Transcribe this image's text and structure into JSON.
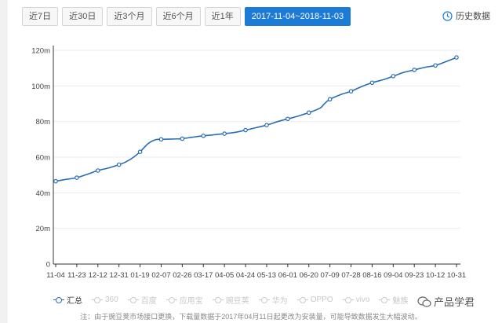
{
  "tabs": [
    "近7日",
    "近30日",
    "近3个月",
    "近6个月",
    "近1年",
    "2017-11-04~2018-11-03"
  ],
  "active_tab": 5,
  "history_label": "历史数据",
  "legend": [
    {
      "label": "汇总",
      "active": true
    },
    {
      "label": "360",
      "active": false
    },
    {
      "label": "百度",
      "active": false
    },
    {
      "label": "应用宝",
      "active": false
    },
    {
      "label": "豌豆荚",
      "active": false
    },
    {
      "label": "华为",
      "active": false
    },
    {
      "label": "OPPO",
      "active": false
    },
    {
      "label": "vivo",
      "active": false
    },
    {
      "label": "魅族",
      "active": false
    }
  ],
  "footnote": "注：由于豌豆荚市场接口更换，下载量数据于2017年04月11日起更改为安装量，可能导致数据发生大幅波动。",
  "watermark": "产品学君",
  "colors": {
    "series": "#2a6db5",
    "tab_active": "#1c7bd6"
  },
  "chart_data": {
    "type": "line",
    "categories": [
      "11-04",
      "11-23",
      "12-12",
      "12-31",
      "01-19",
      "02-07",
      "02-26",
      "03-17",
      "04-05",
      "04-24",
      "05-13",
      "06-01",
      "06-20",
      "07-09",
      "07-28",
      "08-16",
      "09-04",
      "09-23",
      "10-12",
      "10-31"
    ],
    "ylim": [
      0,
      120
    ],
    "yticks": [
      "0",
      "20m",
      "40m",
      "60m",
      "80m",
      "100m",
      "120m"
    ],
    "grid": true,
    "legend_placement": "bottom",
    "series": [
      {
        "name": "汇总",
        "x": [
          "11-04",
          "11-13",
          "11-23",
          "12-03",
          "12-12",
          "12-22",
          "12-31",
          "01-05",
          "01-12",
          "01-19",
          "01-26",
          "02-02",
          "02-07",
          "02-17",
          "02-26",
          "03-07",
          "03-17",
          "03-27",
          "04-05",
          "04-15",
          "04-24",
          "05-03",
          "05-13",
          "05-23",
          "06-01",
          "06-10",
          "06-20",
          "06-30",
          "07-04",
          "07-09",
          "07-18",
          "07-28",
          "08-06",
          "08-16",
          "08-26",
          "09-04",
          "09-13",
          "09-23",
          "10-03",
          "10-12",
          "10-21",
          "10-31"
        ],
        "values": [
          46.5,
          47.5,
          48.5,
          50.5,
          52.5,
          54,
          55.8,
          57,
          59.5,
          63,
          67.5,
          69.8,
          70,
          70.2,
          70.4,
          71.2,
          72,
          72.6,
          73.2,
          74,
          75.2,
          76.5,
          78,
          80,
          81.5,
          83,
          85,
          87.5,
          90,
          92.5,
          95,
          97,
          99.5,
          101.8,
          103.5,
          105.5,
          107.5,
          109,
          110.5,
          111.5,
          113.5,
          116
        ]
      }
    ]
  }
}
